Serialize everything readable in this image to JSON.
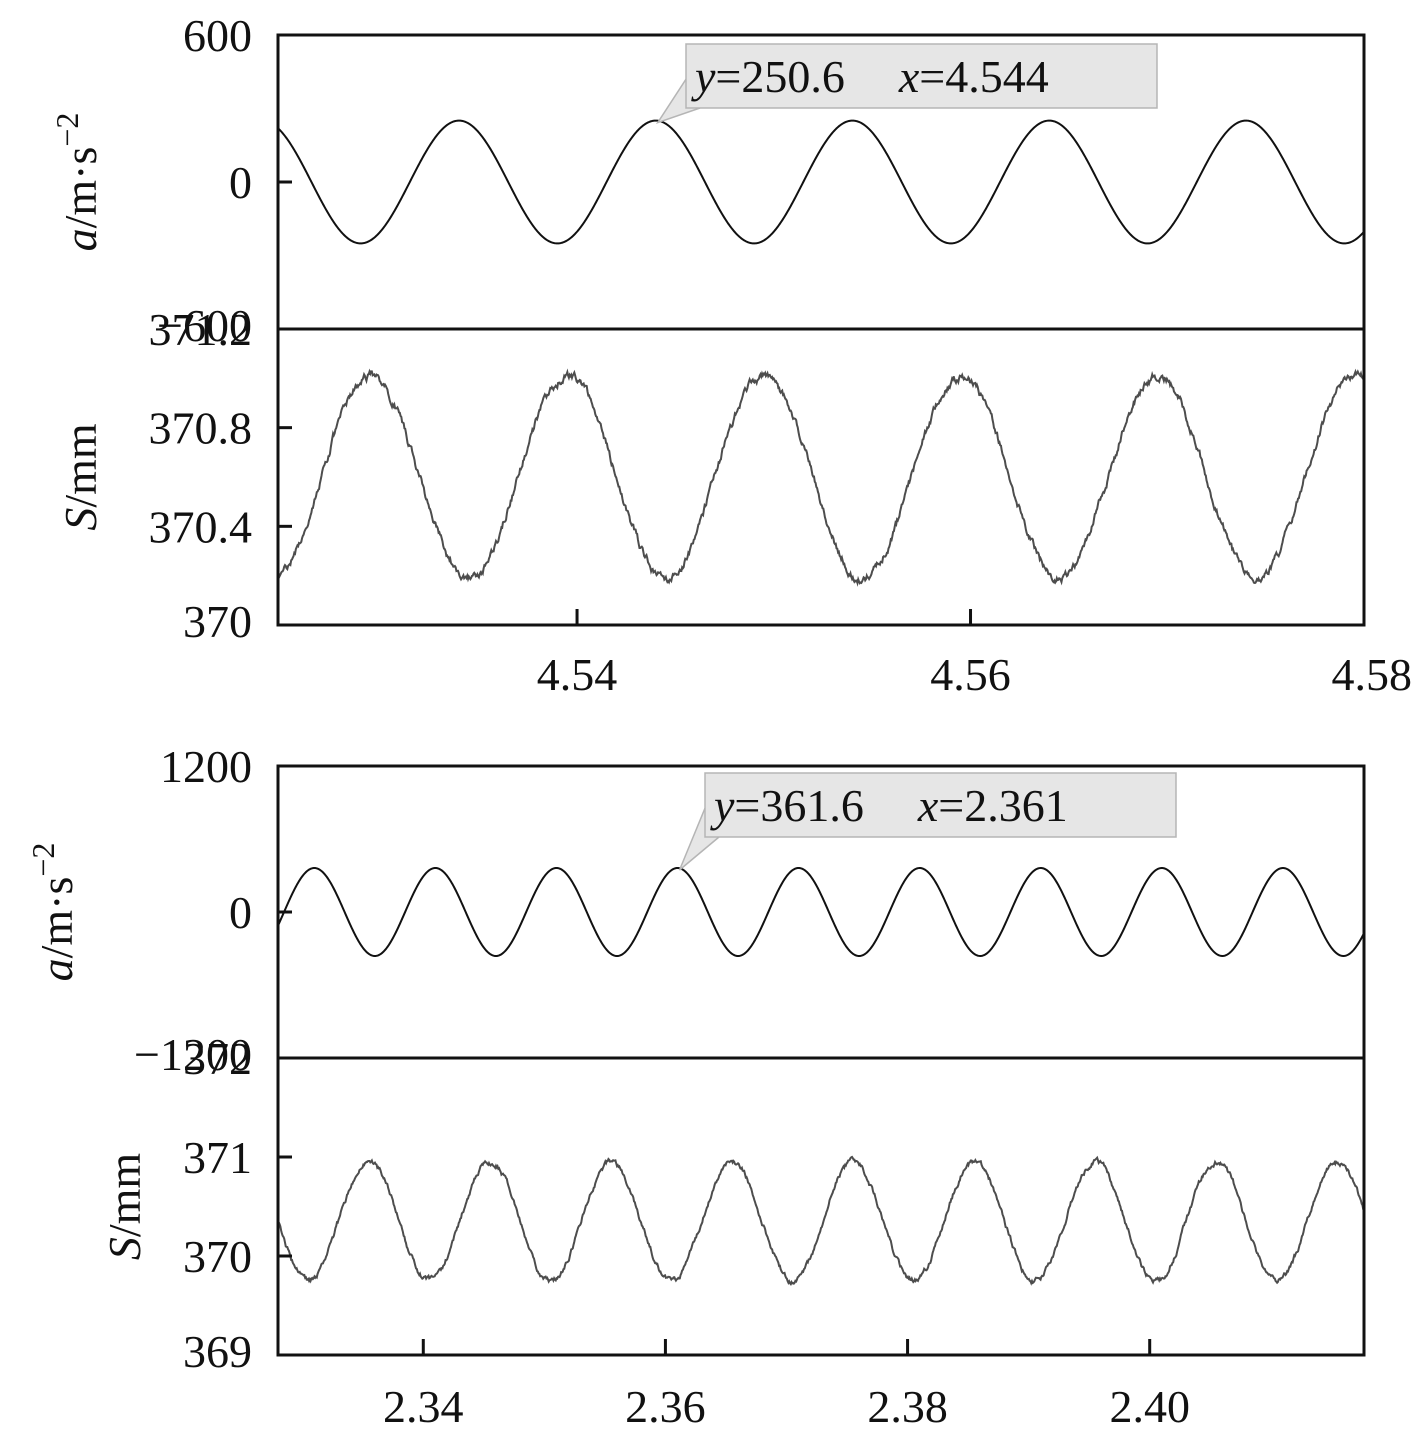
{
  "chart_data": [
    {
      "type": "line",
      "x": {
        "ticks": [
          "4.54",
          "4.56",
          "4.58"
        ],
        "tick_values": [
          4.54,
          4.56,
          4.58
        ],
        "xlim": [
          4.5248,
          4.58
        ]
      },
      "panels": [
        {
          "ylabel_italic": "a",
          "ylabel_unit": "/m·s",
          "ylabel_exp": "−2",
          "ylim": [
            -600,
            600
          ],
          "yticks": [
            "600",
            "0",
            "−600"
          ],
          "ytick_values": [
            600,
            0,
            -600
          ],
          "series": [
            {
              "color": "#111111",
              "amplitude": 250.6,
              "offset": 0,
              "period": 0.01,
              "peak_x": 4.544,
              "noise": 0
            }
          ],
          "annotation": {
            "y_var": "y",
            "y_val": "=250.6",
            "x_var": "x",
            "x_val": "=4.544",
            "point": [
              4.544,
              250.6
            ]
          }
        },
        {
          "ylabel_italic": "S",
          "ylabel_unit": "/mm",
          "ylim": [
            370,
            371.2
          ],
          "yticks": [
            "371.2",
            "370.8",
            "370.4",
            "370"
          ],
          "ytick_values": [
            371.2,
            370.8,
            370.4,
            370
          ],
          "series": [
            {
              "color": "#4d4d4d",
              "amplitude": 0.41,
              "offset": 370.6,
              "period": 0.01,
              "peak_x": 4.5295,
              "noise": 0.012
            }
          ]
        }
      ]
    },
    {
      "type": "line",
      "x": {
        "ticks": [
          "2.34",
          "2.36",
          "2.38",
          "2.40"
        ],
        "tick_values": [
          2.34,
          2.36,
          2.38,
          2.4
        ],
        "xlim": [
          2.328,
          2.4177
        ]
      },
      "panels": [
        {
          "ylabel_italic": "a",
          "ylabel_unit": "/m·s",
          "ylabel_exp": "−2",
          "ylim": [
            -1200,
            1200
          ],
          "yticks": [
            "1200",
            "0",
            "−1200"
          ],
          "ytick_values": [
            1200,
            0,
            -1200
          ],
          "series": [
            {
              "color": "#111111",
              "amplitude": 361.6,
              "offset": 0,
              "period": 0.01,
              "peak_x": 2.361,
              "noise": 0
            }
          ],
          "annotation": {
            "y_var": "y",
            "y_val": "=361.6",
            "x_var": "x",
            "x_val": "=2.361",
            "point": [
              2.361,
              361.6
            ]
          }
        },
        {
          "ylabel_italic": "S",
          "ylabel_unit": "/mm",
          "ylim": [
            369,
            372
          ],
          "yticks": [
            "372",
            "371",
            "370",
            "369"
          ],
          "ytick_values": [
            372,
            371,
            370,
            369
          ],
          "series": [
            {
              "color": "#4d4d4d",
              "amplitude": 0.6,
              "offset": 370.35,
              "period": 0.01,
              "peak_x": 2.3355,
              "noise": 0.02
            }
          ]
        }
      ]
    }
  ]
}
